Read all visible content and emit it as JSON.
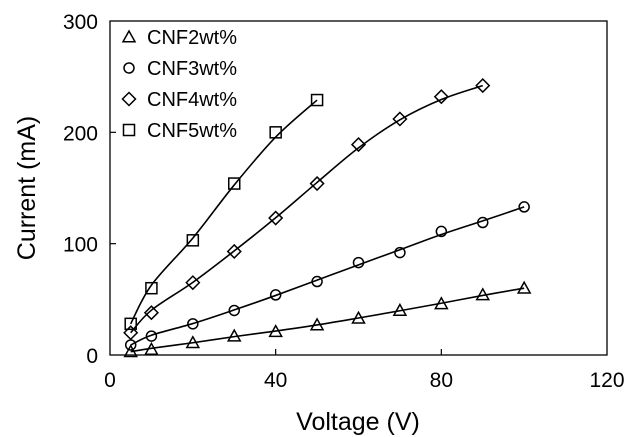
{
  "chart_data": {
    "type": "scatter",
    "title": "",
    "xlabel": "Voltage (V)",
    "ylabel": "Current (mA)",
    "xlim": [
      0,
      120
    ],
    "ylim": [
      0,
      300
    ],
    "xticks": [
      0,
      40,
      80,
      120
    ],
    "yticks": [
      0,
      100,
      200,
      300
    ],
    "grid": false,
    "legend_position": "top-left",
    "series": [
      {
        "name": "CNF2wt%",
        "marker": "triangle",
        "x": [
          5,
          10,
          20,
          30,
          40,
          50,
          60,
          70,
          80,
          90,
          100
        ],
        "y": [
          3,
          5,
          11,
          17,
          21,
          27,
          33,
          40,
          46,
          54,
          60
        ]
      },
      {
        "name": "CNF3wt%",
        "marker": "circle",
        "x": [
          5,
          10,
          20,
          30,
          40,
          50,
          60,
          70,
          80,
          90,
          100
        ],
        "y": [
          9,
          17,
          28,
          40,
          54,
          66,
          83,
          92,
          111,
          119,
          133
        ]
      },
      {
        "name": "CNF4wt%",
        "marker": "diamond",
        "x": [
          5,
          10,
          20,
          30,
          40,
          50,
          60,
          70,
          80,
          90
        ],
        "y": [
          20,
          38,
          65,
          93,
          123,
          154,
          189,
          212,
          232,
          242
        ]
      },
      {
        "name": "CNF5wt%",
        "marker": "square",
        "x": [
          5,
          10,
          20,
          30,
          40,
          50
        ],
        "y": [
          28,
          60,
          103,
          154,
          200,
          229
        ]
      }
    ]
  }
}
